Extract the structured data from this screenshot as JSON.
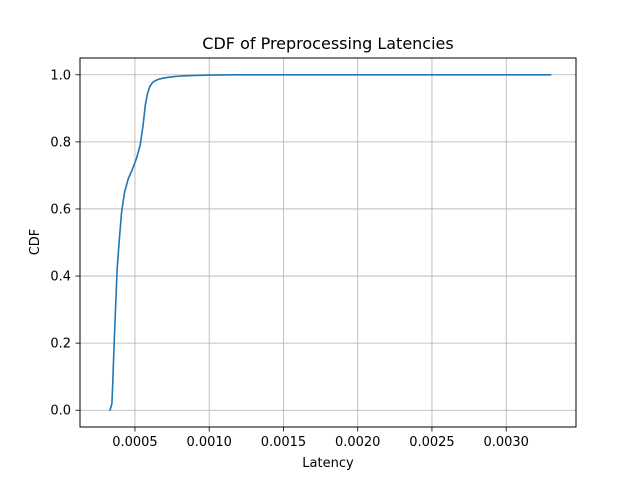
{
  "chart_data": {
    "type": "line",
    "title": "CDF of Preprocessing Latencies",
    "xlabel": "Latency",
    "ylabel": "CDF",
    "xlim": [
      0.00013,
      0.00347
    ],
    "ylim": [
      -0.05,
      1.05
    ],
    "grid": true,
    "legend": "none",
    "x_ticks": [
      {
        "value": 0.0005,
        "label": "0.0005"
      },
      {
        "value": 0.001,
        "label": "0.0010"
      },
      {
        "value": 0.0015,
        "label": "0.0015"
      },
      {
        "value": 0.002,
        "label": "0.0020"
      },
      {
        "value": 0.0025,
        "label": "0.0025"
      },
      {
        "value": 0.003,
        "label": "0.0030"
      }
    ],
    "y_ticks": [
      {
        "value": 0.0,
        "label": "0.0"
      },
      {
        "value": 0.2,
        "label": "0.2"
      },
      {
        "value": 0.4,
        "label": "0.4"
      },
      {
        "value": 0.6,
        "label": "0.6"
      },
      {
        "value": 0.8,
        "label": "0.8"
      },
      {
        "value": 1.0,
        "label": "1.0"
      }
    ],
    "series": [
      {
        "color": "#1f77b4",
        "x": [
          0.000332,
          0.000345,
          0.000352,
          0.00036,
          0.00037,
          0.00038,
          0.000395,
          0.00041,
          0.00043,
          0.000455,
          0.00048,
          0.00051,
          0.000535,
          0.000555,
          0.00057,
          0.000585,
          0.0006,
          0.00062,
          0.000645,
          0.00067,
          0.0007,
          0.00075,
          0.0008,
          0.0009,
          0.001,
          0.0012,
          0.0015,
          0.002,
          0.0025,
          0.003,
          0.0033
        ],
        "y": [
          0.0,
          0.02,
          0.1,
          0.2,
          0.31,
          0.42,
          0.51,
          0.59,
          0.65,
          0.69,
          0.715,
          0.75,
          0.79,
          0.85,
          0.91,
          0.945,
          0.965,
          0.978,
          0.984,
          0.988,
          0.991,
          0.994,
          0.996,
          0.998,
          0.999,
          1.0,
          1.0,
          1.0,
          1.0,
          1.0,
          1.0
        ]
      }
    ]
  }
}
